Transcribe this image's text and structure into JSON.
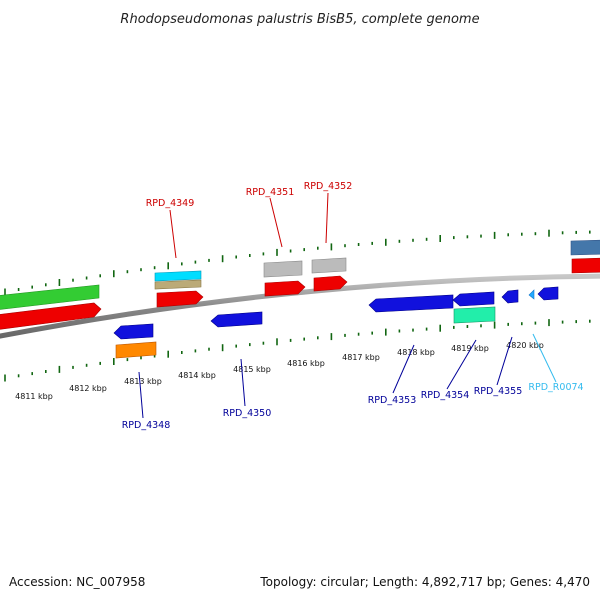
{
  "title": "Rhodopseudomonas palustris BisB5, complete genome",
  "footer": {
    "accession": "Accession: NC_007958",
    "summary": "Topology: circular; Length: 4,892,717 bp; Genes: 4,470"
  },
  "kbp_labels": [
    "4811 kbp",
    "4812 kbp",
    "4813 kbp",
    "4814 kbp",
    "4815 kbp",
    "4816 kbp",
    "4817 kbp",
    "4818 kbp",
    "4819 kbp",
    "4820 kbp"
  ],
  "gene_labels": {
    "rpd_4348": "RPD_4348",
    "rpd_4349": "RPD_4349",
    "rpd_4350": "RPD_4350",
    "rpd_4351": "RPD_4351",
    "rpd_4352": "RPD_4352",
    "rpd_4353": "RPD_4353",
    "rpd_4354": "RPD_4354",
    "rpd_4355": "RPD_4355",
    "rpd_r0074": "RPD_R0074"
  },
  "colors": {
    "red": "#ee0000",
    "green": "#33cc33",
    "blue": "#1111dd",
    "cyan": "#00ddff",
    "orange": "#ff8800",
    "gray": "#bbbbbb",
    "tan": "#bbaa77",
    "teal": "#22eeaa",
    "steel": "#4477aa",
    "light_blue": "#22aaff",
    "forward_label": "#cc0000",
    "reverse_label": "#000099",
    "rna_label": "#33bbee",
    "tick": "#116611"
  }
}
